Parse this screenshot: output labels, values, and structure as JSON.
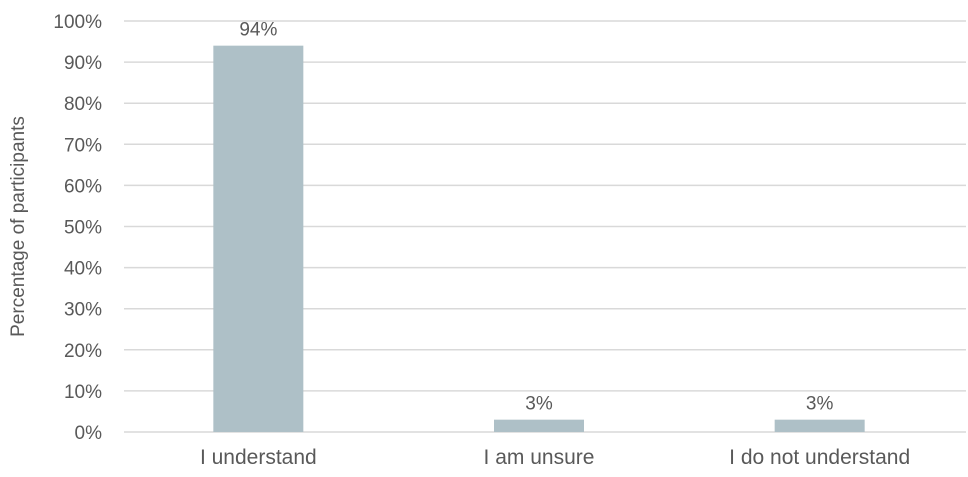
{
  "chart_data": {
    "type": "bar",
    "categories": [
      "I understand",
      "I am unsure",
      "I do not understand"
    ],
    "values": [
      94,
      3,
      3
    ],
    "data_labels": [
      "94%",
      "3%",
      "3%"
    ],
    "ylabel": "Percentage of participants",
    "xlabel": "",
    "ylim": [
      0,
      100
    ],
    "yticks": [
      "0%",
      "10%",
      "20%",
      "30%",
      "40%",
      "50%",
      "60%",
      "70%",
      "80%",
      "90%",
      "100%"
    ],
    "grid": true,
    "bar_color": "#aec0c7",
    "grid_color": "#d9d9d9",
    "text_color": "#595959"
  }
}
